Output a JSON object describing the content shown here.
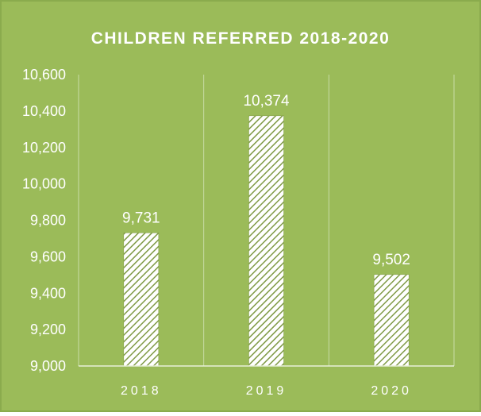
{
  "chart_data": {
    "type": "bar",
    "title": "CHILDREN REFERRED 2018-2020",
    "categories": [
      "2018",
      "2019",
      "2020"
    ],
    "values": [
      9731,
      10374,
      9502
    ],
    "value_labels": [
      "9,731",
      "10,374",
      "9,502"
    ],
    "ylim": [
      9000,
      10600
    ],
    "yticks": [
      9000,
      9200,
      9400,
      9600,
      9800,
      10000,
      10200,
      10400,
      10600
    ],
    "ytick_labels": [
      "9,000",
      "9,200",
      "9,400",
      "9,600",
      "9,800",
      "10,000",
      "10,200",
      "10,400",
      "10,600"
    ],
    "xlabel": "",
    "ylabel": "",
    "grid": "vertical category separators",
    "legend": "none",
    "colors": {
      "background": "#9bbb59",
      "border": "#8aab4d",
      "axis_line": "#e8f0d8",
      "grid_line": "#c8dca6",
      "bar_fill": "#ffffff",
      "bar_hatch": "#7f9a45",
      "text": "#ffffff"
    },
    "bar_pattern": "diagonal-hatch"
  }
}
